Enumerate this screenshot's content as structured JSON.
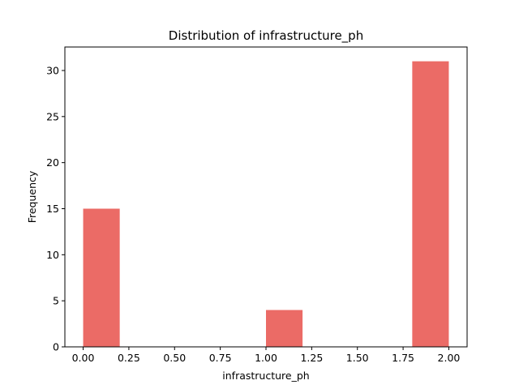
{
  "chart_data": {
    "type": "bar",
    "title": "Distribution of  infrastructure_ph",
    "xlabel": "infrastructure_ph",
    "ylabel": "Frequency",
    "bins": [
      {
        "x0": 0.0,
        "x1": 0.2,
        "count": 15
      },
      {
        "x0": 1.0,
        "x1": 1.2,
        "count": 4
      },
      {
        "x0": 1.8,
        "x1": 2.0,
        "count": 31
      }
    ],
    "xlim": [
      -0.1,
      2.1
    ],
    "ylim": [
      0,
      32.55
    ],
    "xticks": [
      0.0,
      0.25,
      0.5,
      0.75,
      1.0,
      1.25,
      1.5,
      1.75,
      2.0
    ],
    "xtick_labels": [
      "0.00",
      "0.25",
      "0.50",
      "0.75",
      "1.00",
      "1.25",
      "1.50",
      "1.75",
      "2.00"
    ],
    "yticks": [
      0,
      5,
      10,
      15,
      20,
      25,
      30
    ],
    "ytick_labels": [
      "0",
      "5",
      "10",
      "15",
      "20",
      "25",
      "30"
    ],
    "bar_color": "#eb6b66",
    "grid": false,
    "legend": "none"
  }
}
